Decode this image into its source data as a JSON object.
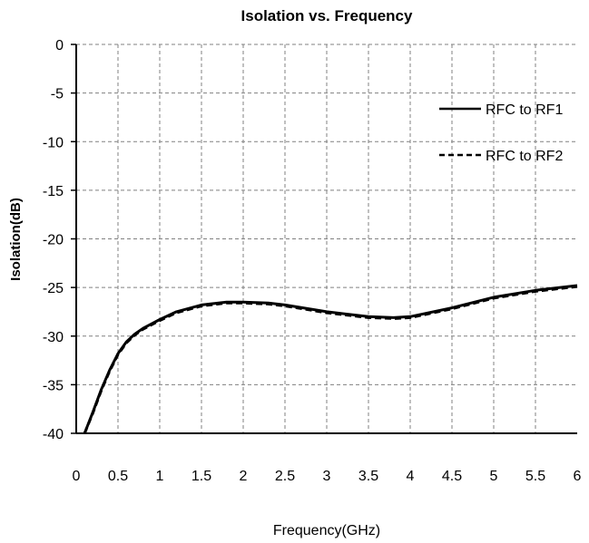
{
  "chart_data": {
    "type": "line",
    "title": "Isolation vs. Frequency",
    "xlabel": "Frequency(GHz)",
    "ylabel": "Isolation(dB)",
    "xlim": [
      0,
      6
    ],
    "ylim": [
      -40,
      0
    ],
    "xticks": [
      "0",
      "0.5",
      "1",
      "1.5",
      "2",
      "2.5",
      "3",
      "3.5",
      "4",
      "4.5",
      "5",
      "5.5",
      "6"
    ],
    "yticks": [
      "0",
      "-5",
      "-10",
      "-15",
      "-20",
      "-25",
      "-30",
      "-35",
      "-40"
    ],
    "grid": true,
    "legend_position": "top-right",
    "series": [
      {
        "name": "RFC to RF1",
        "style": "solid",
        "color": "#000000",
        "x": [
          0.1,
          0.2,
          0.3,
          0.4,
          0.5,
          0.6,
          0.7,
          0.8,
          1.0,
          1.2,
          1.5,
          1.8,
          2.0,
          2.3,
          2.5,
          3.0,
          3.5,
          3.8,
          4.0,
          4.5,
          5.0,
          5.5,
          6.0
        ],
        "y": [
          -40,
          -37.8,
          -35.5,
          -33.5,
          -31.8,
          -30.6,
          -29.8,
          -29.2,
          -28.3,
          -27.5,
          -26.8,
          -26.5,
          -26.5,
          -26.6,
          -26.8,
          -27.5,
          -28.0,
          -28.1,
          -28.0,
          -27.1,
          -26.0,
          -25.3,
          -24.8
        ]
      },
      {
        "name": "RFC to RF2",
        "style": "dashed",
        "color": "#000000",
        "x": [
          0.1,
          0.2,
          0.3,
          0.4,
          0.5,
          0.6,
          0.7,
          0.8,
          1.0,
          1.2,
          1.5,
          1.8,
          2.0,
          2.3,
          2.5,
          3.0,
          3.5,
          3.8,
          4.0,
          4.5,
          5.0,
          5.5,
          6.0
        ],
        "y": [
          -40,
          -37.9,
          -35.6,
          -33.6,
          -31.9,
          -30.7,
          -29.9,
          -29.3,
          -28.4,
          -27.6,
          -26.9,
          -26.6,
          -26.6,
          -26.7,
          -26.9,
          -27.6,
          -28.1,
          -28.2,
          -28.1,
          -27.2,
          -26.1,
          -25.4,
          -24.9
        ]
      }
    ]
  },
  "colors": {
    "axis": "#000000",
    "grid": "#808080",
    "background": "#ffffff"
  }
}
